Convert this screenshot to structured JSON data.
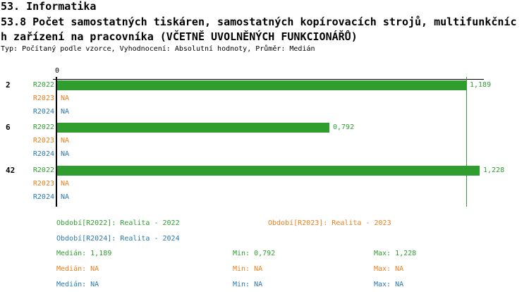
{
  "header": {
    "section_title": "53. Informatika",
    "question_lines": [
      "53.8 Počet samostatných tiskáren, samostatných kopírovacích strojů, multifunkčníc",
      "h zařízení na pracovníka (VČETNĚ UVOLNĚNÝCH FUNKCIONÁŘŮ)"
    ],
    "meta": "Typ: Počítaný podle vzorce, Vyhodnocení: Absolutní hodnoty, Průměr: Medián"
  },
  "colors": {
    "r2022": "#2f9e2f",
    "r2023": "#ee7d1a",
    "r2024": "#2878b4",
    "axis": "#000000"
  },
  "chart_data": {
    "type": "bar",
    "orientation": "horizontal",
    "title": "53.8 Počet samostatných tiskáren, samostatných kopírovacích strojů, multifunkčních zařízení na pracovníka (VČETNĚ UVOLNĚNÝCH FUNKCIONÁŘŮ)",
    "axis_origin_label": "0",
    "xlim": [
      0,
      1.25
    ],
    "grid": false,
    "series_names": [
      "R2022",
      "R2023",
      "R2024"
    ],
    "median_line_value": 1.189,
    "groups": [
      {
        "label": "2",
        "rows": [
          {
            "series": "R2022",
            "value": 1.189,
            "value_label": "1,189"
          },
          {
            "series": "R2023",
            "value": null,
            "value_label": "NA"
          },
          {
            "series": "R2024",
            "value": null,
            "value_label": "NA"
          }
        ]
      },
      {
        "label": "6",
        "rows": [
          {
            "series": "R2022",
            "value": 0.792,
            "value_label": "0,792"
          },
          {
            "series": "R2023",
            "value": null,
            "value_label": "NA"
          },
          {
            "series": "R2024",
            "value": null,
            "value_label": "NA"
          }
        ]
      },
      {
        "label": "42",
        "rows": [
          {
            "series": "R2022",
            "value": 1.228,
            "value_label": "1,228"
          },
          {
            "series": "R2023",
            "value": null,
            "value_label": "NA"
          },
          {
            "series": "R2024",
            "value": null,
            "value_label": "NA"
          }
        ]
      }
    ]
  },
  "legend": {
    "periods": [
      {
        "series": "R2022",
        "label": "Období[R2022]: Realita - 2022"
      },
      {
        "series": "R2023",
        "label": "Období[R2023]: Realita - 2023"
      },
      {
        "series": "R2024",
        "label": "Období[R2024]: Realita - 2024"
      }
    ],
    "stats": [
      {
        "series": "R2022",
        "median": "Medián: 1,189",
        "min": "Min: 0,792",
        "max": "Max: 1,228"
      },
      {
        "series": "R2023",
        "median": "Medián: NA",
        "min": "Min: NA",
        "max": "Max: NA"
      },
      {
        "series": "R2024",
        "median": "Medián: NA",
        "min": "Min: NA",
        "max": "Max: NA"
      }
    ]
  }
}
